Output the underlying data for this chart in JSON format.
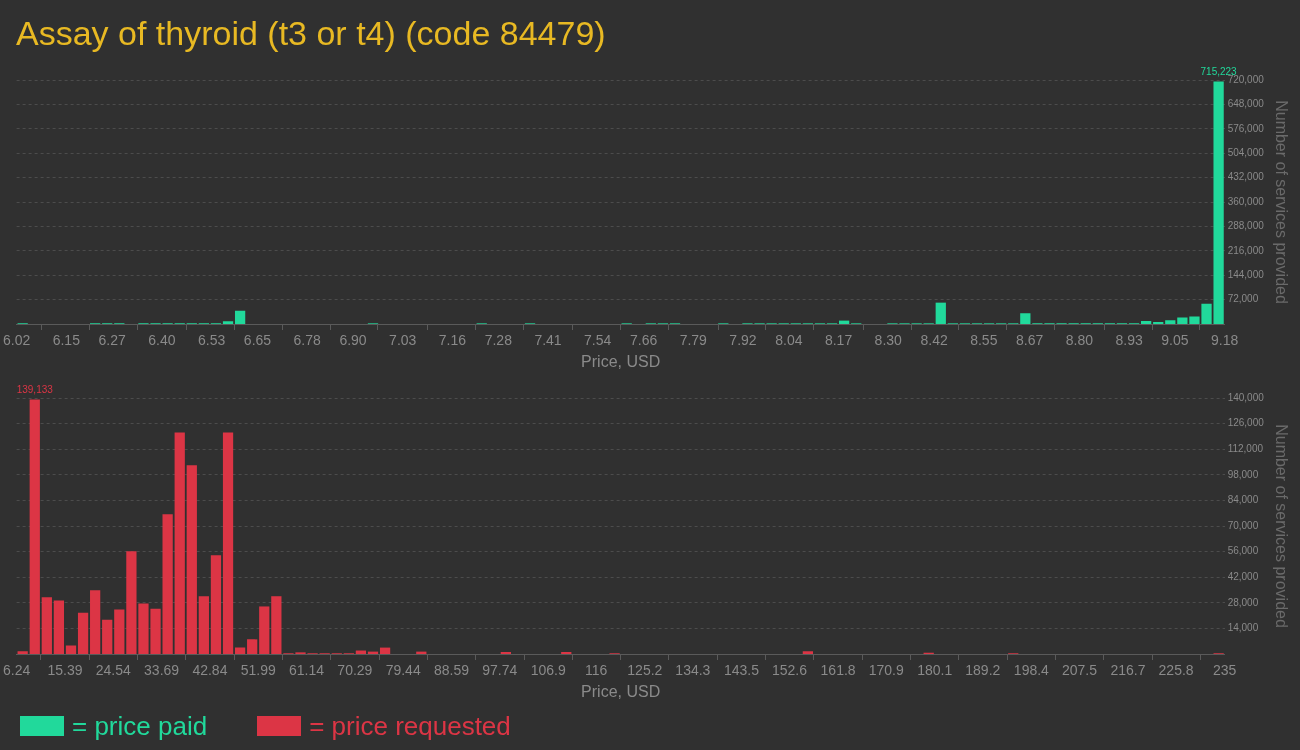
{
  "chart_data": [
    {
      "type": "histogram",
      "title": "Assay of thyroid (t3 or t4) (code 84479)",
      "xlabel": "Price, USD",
      "ylabel": "Number of services provided",
      "bins": [
        6.02,
        6.0516,
        6.0832,
        6.1148,
        6.1464,
        6.178,
        6.2096,
        6.2412,
        6.2728,
        6.3044,
        6.336,
        6.3676,
        6.3992,
        6.4308,
        6.4624,
        6.494,
        6.5256,
        6.5572,
        6.5888,
        6.6204,
        6.652,
        6.6836,
        6.7152,
        6.7468,
        6.7784,
        6.81,
        6.8416,
        6.8732,
        6.9048,
        6.9364,
        6.968,
        6.9996,
        7.0312,
        7.0628,
        7.0944,
        7.126,
        7.1576,
        7.1892,
        7.2208,
        7.2524,
        7.284,
        7.3156,
        7.3472,
        7.3788,
        7.4104,
        7.442,
        7.4736,
        7.5052,
        7.5368,
        7.5684,
        7.6,
        7.6316,
        7.6632,
        7.6948,
        7.7264,
        7.758,
        7.7896,
        7.8212,
        7.8528,
        7.8844,
        7.916,
        7.9476,
        7.9792,
        8.0108,
        8.0424,
        8.074,
        8.1056,
        8.1372,
        8.1688,
        8.2004,
        8.232,
        8.2636,
        8.2952,
        8.3268,
        8.3584,
        8.39,
        8.4216,
        8.4532,
        8.4848,
        8.5164,
        8.548,
        8.5796,
        8.6112,
        8.6428,
        8.6744,
        8.706,
        8.7376,
        8.7692,
        8.8008,
        8.8324,
        8.864,
        8.8956,
        8.9272,
        8.9588,
        8.9904,
        9.022,
        9.0536,
        9.0852,
        9.1168,
        9.1484,
        9.18
      ],
      "series": [
        {
          "name": "= price paid",
          "color": "#21d99b",
          "values": [
            2000,
            0,
            0,
            0,
            0,
            0,
            2000,
            2000,
            2000,
            0,
            2000,
            2000,
            2000,
            2000,
            2000,
            2000,
            2000,
            8000,
            39000,
            0,
            0,
            0,
            0,
            0,
            0,
            0,
            0,
            0,
            0,
            2000,
            0,
            0,
            0,
            0,
            0,
            0,
            0,
            0,
            2000,
            0,
            0,
            0,
            2000,
            0,
            0,
            0,
            0,
            0,
            0,
            0,
            2000,
            0,
            2000,
            2000,
            2000,
            0,
            0,
            0,
            2000,
            0,
            2000,
            2000,
            2000,
            2000,
            2000,
            2000,
            2000,
            2000,
            10000,
            2000,
            0,
            0,
            2000,
            2000,
            2000,
            2000,
            63000,
            2000,
            2000,
            2000,
            2000,
            2000,
            2000,
            32000,
            2000,
            2000,
            2000,
            2000,
            2000,
            2000,
            2000,
            2000,
            2000,
            9000,
            6000,
            11000,
            19000,
            22000,
            60000,
            715223
          ],
          "value_labels": [
            null,
            null,
            null,
            null,
            null,
            null,
            null,
            null,
            null,
            null,
            null,
            null,
            null,
            null,
            null,
            null,
            null,
            null,
            null,
            null,
            null,
            null,
            null,
            null,
            null,
            null,
            null,
            null,
            null,
            null,
            null,
            null,
            null,
            null,
            null,
            null,
            null,
            null,
            null,
            null,
            null,
            null,
            null,
            null,
            null,
            null,
            null,
            null,
            null,
            null,
            null,
            null,
            null,
            null,
            null,
            null,
            null,
            null,
            null,
            null,
            null,
            null,
            null,
            null,
            null,
            null,
            null,
            null,
            null,
            null,
            null,
            null,
            null,
            null,
            null,
            null,
            null,
            null,
            null,
            null,
            null,
            null,
            null,
            null,
            null,
            null,
            null,
            null,
            null,
            null,
            null,
            null,
            null,
            null,
            null,
            null,
            null,
            null,
            null,
            "715,223"
          ]
        }
      ],
      "xlim": [
        6.02,
        9.18
      ],
      "xticks": [
        6.02,
        6.15,
        6.27,
        {
          "value": 6.4,
          "label": "6.40"
        },
        6.53,
        6.65,
        6.78,
        {
          "value": 6.9,
          "label": "6.90"
        },
        7.03,
        7.16,
        7.28,
        7.41,
        7.54,
        7.66,
        7.79,
        7.92,
        8.04,
        8.17,
        {
          "value": 8.3,
          "label": "8.30"
        },
        8.42,
        8.55,
        8.67,
        {
          "value": 8.8,
          "label": "8.80"
        },
        8.93,
        9.05,
        9.18
      ],
      "ylim": [
        0,
        720000
      ],
      "yticks": [
        {
          "value": 72000,
          "label": "72,000"
        },
        {
          "value": 144000,
          "label": "144,000"
        },
        {
          "value": 216000,
          "label": "216,000"
        },
        {
          "value": 288000,
          "label": "288,000"
        },
        {
          "value": 360000,
          "label": "360,000"
        },
        {
          "value": 432000,
          "label": "432,000"
        },
        {
          "value": 504000,
          "label": "504,000"
        },
        {
          "value": 576000,
          "label": "576,000"
        },
        {
          "value": 648000,
          "label": "648,000"
        },
        {
          "value": 720000,
          "label": "720,000"
        }
      ],
      "grid": "y",
      "legend": "bottom left"
    },
    {
      "type": "histogram",
      "xlabel": "Price, USD",
      "ylabel": "Number of services provided",
      "bins": [
        6.24,
        8.53,
        10.82,
        13.1,
        15.39,
        17.68,
        19.97,
        22.25,
        24.54,
        26.83,
        29.12,
        31.4,
        33.69,
        35.98,
        38.27,
        40.55,
        42.84,
        45.13,
        47.42,
        49.7,
        51.99,
        54.28,
        56.57,
        58.86,
        61.14,
        63.43,
        65.72,
        68.01,
        70.29,
        72.58,
        74.87,
        77.16,
        79.44,
        81.73,
        84.02,
        86.31,
        88.59,
        90.88,
        93.17,
        95.46,
        97.74,
        100.03,
        102.32,
        104.61,
        106.89,
        109.18,
        111.47,
        113.76,
        116.04,
        118.33,
        120.62,
        122.91,
        125.2,
        127.48,
        129.77,
        132.06,
        134.35,
        136.63,
        138.92,
        141.21,
        143.5,
        145.78,
        148.07,
        150.36,
        152.65,
        154.93,
        157.22,
        159.51,
        161.8,
        164.08,
        166.37,
        168.66,
        170.95,
        173.23,
        175.52,
        177.81,
        180.1,
        182.39,
        184.67,
        186.96,
        189.25,
        191.54,
        193.82,
        196.11,
        198.4,
        200.69,
        202.98,
        205.26,
        207.55,
        209.84,
        212.13,
        214.42,
        216.7,
        218.99,
        221.28,
        223.57,
        225.85,
        228.14,
        230.43,
        232.72,
        235
      ],
      "series": [
        {
          "name": "= price requested",
          "color": "#dc3545",
          "values": [
            1500,
            139133,
            31000,
            29300,
            4700,
            22600,
            34900,
            18700,
            24300,
            56200,
            27600,
            24800,
            76400,
            121200,
            103200,
            31600,
            54000,
            121200,
            3500,
            8000,
            26000,
            31600,
            400,
            900,
            400,
            400,
            400,
            400,
            1900,
            1300,
            3500,
            0,
            0,
            1300,
            0,
            0,
            0,
            0,
            0,
            0,
            1100,
            0,
            0,
            0,
            0,
            1100,
            0,
            0,
            0,
            400,
            0,
            0,
            0,
            0,
            0,
            0,
            0,
            0,
            0,
            0,
            0,
            0,
            0,
            0,
            0,
            1500,
            0,
            0,
            0,
            0,
            0,
            0,
            0,
            0,
            0,
            700,
            0,
            0,
            0,
            0,
            0,
            0,
            400,
            0,
            0,
            0,
            0,
            0,
            0,
            0,
            0,
            0,
            0,
            0,
            0,
            0,
            0,
            0,
            0,
            400
          ],
          "value_labels": [
            null,
            "139,133",
            null,
            null,
            null,
            null,
            null,
            null,
            null,
            null,
            null,
            null,
            null,
            null,
            null,
            null,
            null,
            null,
            null,
            null,
            null,
            null,
            null,
            null,
            null,
            null,
            null,
            null,
            null,
            null,
            null,
            null,
            null,
            null,
            null,
            null,
            null,
            null,
            null,
            null,
            null,
            null,
            null,
            null,
            null,
            null,
            null,
            null,
            null,
            null,
            null,
            null,
            null,
            null,
            null,
            null,
            null,
            null,
            null,
            null,
            null,
            null,
            null,
            null,
            null,
            null,
            null,
            null,
            null,
            null,
            null,
            null,
            null,
            null,
            null,
            null,
            null,
            null,
            null,
            null,
            null,
            null,
            null,
            null,
            null,
            null,
            null,
            null,
            null,
            null,
            null,
            null,
            null,
            null,
            null,
            null,
            null,
            null,
            null,
            null
          ]
        }
      ],
      "xlim": [
        6.24,
        235
      ],
      "xticks": [
        6.24,
        15.39,
        24.54,
        33.69,
        42.84,
        51.99,
        61.14,
        70.29,
        79.44,
        88.59,
        97.74,
        106.9,
        116,
        125.2,
        134.3,
        143.5,
        152.6,
        161.8,
        170.9,
        180.1,
        189.2,
        198.4,
        207.5,
        216.7,
        225.8,
        235
      ],
      "ylim": [
        0,
        140000
      ],
      "yticks": [
        {
          "value": 14000,
          "label": "14,000"
        },
        {
          "value": 28000,
          "label": "28,000"
        },
        {
          "value": 42000,
          "label": "42,000"
        },
        {
          "value": 56000,
          "label": "56,000"
        },
        {
          "value": 70000,
          "label": "70,000"
        },
        {
          "value": 84000,
          "label": "84,000"
        },
        {
          "value": 98000,
          "label": "98,000"
        },
        {
          "value": 112000,
          "label": "112,000"
        },
        {
          "value": 126000,
          "label": "126,000"
        },
        {
          "value": 140000,
          "label": "140,000"
        }
      ],
      "grid": "y",
      "legend": "bottom left"
    }
  ]
}
